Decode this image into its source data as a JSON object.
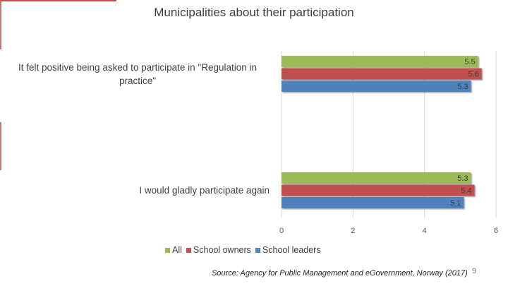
{
  "title": "Municipalities about their participation",
  "source": "Source: Agency for Public Management and eGovernment, Norway (2017)",
  "page_number": "9",
  "colors": {
    "All": "#9bbb59",
    "School owners": "#c0504d",
    "School leaders": "#4f81bd"
  },
  "chart_data": {
    "type": "bar",
    "orientation": "horizontal",
    "title": "Municipalities about their participation",
    "categories": [
      "It felt positive being asked to participate in \"Regulation in practice\"",
      "I would gladly participate again"
    ],
    "series": [
      {
        "name": "All",
        "values": [
          5.5,
          5.3
        ],
        "labels": [
          "5.5",
          "5.3"
        ]
      },
      {
        "name": "School owners",
        "values": [
          5.6,
          5.4
        ],
        "labels": [
          "5.6",
          "5.4"
        ]
      },
      {
        "name": "School leaders",
        "values": [
          5.3,
          5.1
        ],
        "labels": [
          "5.3",
          "5.1"
        ]
      }
    ],
    "xlim": [
      0,
      6
    ],
    "xticks": [
      "0",
      "2",
      "4",
      "6"
    ],
    "grid": true,
    "legend_position": "bottom"
  }
}
